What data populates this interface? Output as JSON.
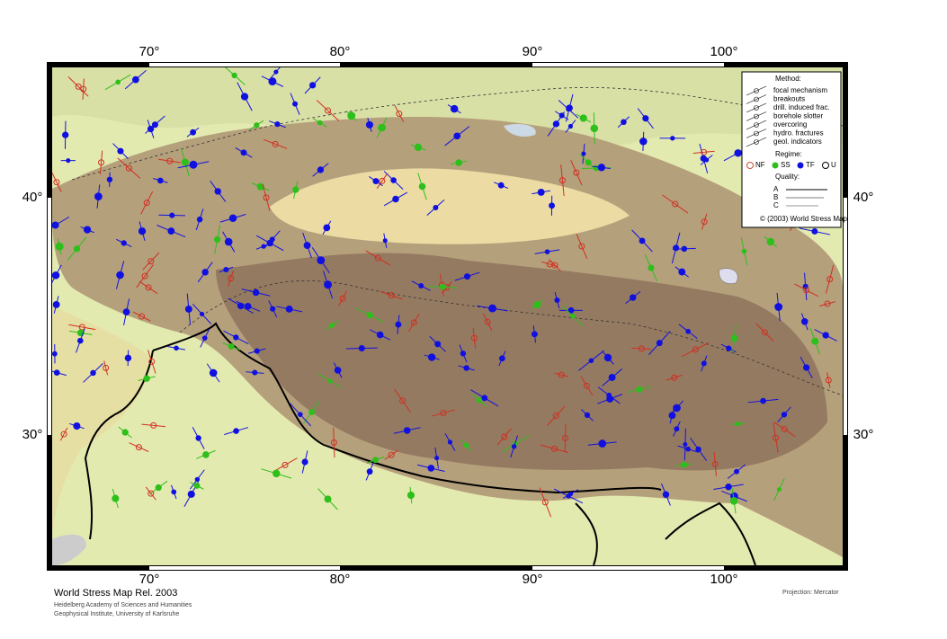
{
  "map": {
    "top_labels": [
      "70°",
      "80°",
      "90°",
      "100°"
    ],
    "bottom_labels": [
      "70°",
      "80°",
      "90°",
      "100°"
    ],
    "left_labels": [
      "40°",
      "30°"
    ],
    "right_labels": [
      "40°",
      "30°"
    ],
    "legend": {
      "method_title": "Method:",
      "methods": [
        "focal mechanism",
        "breakouts",
        "drill. induced frac.",
        "borehole slotter",
        "overcoring",
        "hydro. fractures",
        "geol. indicators"
      ],
      "regime_title": "Regime:",
      "regimes": [
        "NF",
        "SS",
        "TF",
        "U"
      ],
      "quality_title": "Quality:",
      "qualities": [
        "A",
        "B",
        "C"
      ],
      "copyright": "© (2003) World Stress Map"
    },
    "footer": {
      "title": "World Stress Map Rel. 2003",
      "line1": "Heidelberg Academy of Sciences and Humanities",
      "line2": "Geophysical Institute, University of Karlsruhe",
      "projection": "Projection: Mercator"
    }
  }
}
